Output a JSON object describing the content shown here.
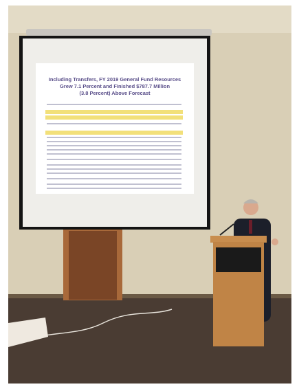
{
  "slide": {
    "title": [
      "Including Transfers, FY 2019 General Fund Resources",
      "Grew 7.1 Percent and Finished $787.7 Million",
      "(3.8 Percent) Above Forecast"
    ]
  }
}
